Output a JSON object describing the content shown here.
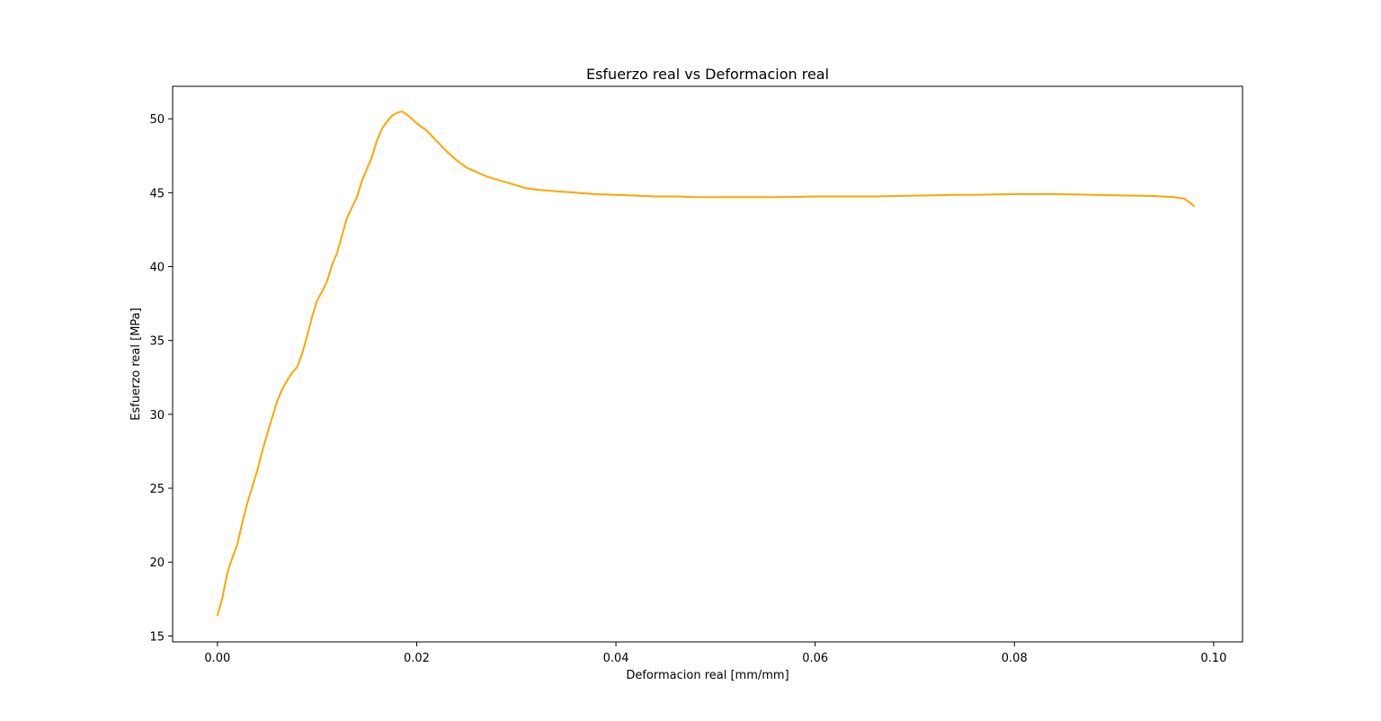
{
  "chart_data": {
    "type": "line",
    "title": "Esfuerzo real vs Deformacion real",
    "xlabel": "Deformacion real [mm/mm]",
    "ylabel": "Esfuerzo real [MPa]",
    "xlim": [
      -0.0045,
      0.1029
    ],
    "ylim": [
      14.6,
      52.2
    ],
    "xticks": [
      0.0,
      0.02,
      0.04,
      0.06,
      0.08,
      0.1
    ],
    "xtick_labels": [
      "0.00",
      "0.02",
      "0.04",
      "0.06",
      "0.08",
      "0.10"
    ],
    "yticks": [
      15,
      20,
      25,
      30,
      35,
      40,
      45,
      50
    ],
    "ytick_labels": [
      "15",
      "20",
      "25",
      "30",
      "35",
      "40",
      "45",
      "50"
    ],
    "grid": false,
    "legend": "none",
    "series": [
      {
        "color": "#ffa500",
        "x": [
          0.0,
          0.0005,
          0.001,
          0.0015,
          0.002,
          0.0025,
          0.003,
          0.0035,
          0.004,
          0.0045,
          0.005,
          0.0055,
          0.006,
          0.0065,
          0.007,
          0.0075,
          0.008,
          0.0085,
          0.009,
          0.0095,
          0.01,
          0.0105,
          0.011,
          0.0115,
          0.012,
          0.0125,
          0.013,
          0.0135,
          0.014,
          0.0145,
          0.015,
          0.0155,
          0.016,
          0.0165,
          0.017,
          0.0175,
          0.018,
          0.0185,
          0.019,
          0.0195,
          0.02,
          0.021,
          0.022,
          0.023,
          0.024,
          0.025,
          0.026,
          0.027,
          0.028,
          0.029,
          0.03,
          0.031,
          0.032,
          0.034,
          0.036,
          0.038,
          0.04,
          0.042,
          0.044,
          0.046,
          0.048,
          0.05,
          0.052,
          0.054,
          0.056,
          0.058,
          0.06,
          0.062,
          0.064,
          0.066,
          0.068,
          0.07,
          0.072,
          0.074,
          0.076,
          0.078,
          0.08,
          0.082,
          0.084,
          0.086,
          0.088,
          0.09,
          0.092,
          0.094,
          0.096,
          0.097,
          0.0975,
          0.098
        ],
        "y": [
          16.4,
          17.6,
          19.3,
          20.3,
          21.2,
          22.7,
          24.0,
          25.1,
          26.2,
          27.5,
          28.7,
          29.8,
          30.9,
          31.7,
          32.3,
          32.8,
          33.2,
          34.1,
          35.3,
          36.6,
          37.7,
          38.3,
          39.0,
          40.1,
          40.9,
          42.1,
          43.3,
          44.0,
          44.7,
          45.8,
          46.6,
          47.4,
          48.5,
          49.3,
          49.8,
          50.2,
          50.4,
          50.5,
          50.3,
          50.0,
          49.7,
          49.2,
          48.5,
          47.8,
          47.2,
          46.7,
          46.4,
          46.1,
          45.9,
          45.7,
          45.5,
          45.3,
          45.2,
          45.1,
          45.0,
          44.9,
          44.85,
          44.8,
          44.75,
          44.75,
          44.7,
          44.7,
          44.7,
          44.7,
          44.7,
          44.72,
          44.75,
          44.75,
          44.75,
          44.75,
          44.78,
          44.8,
          44.82,
          44.85,
          44.85,
          44.88,
          44.9,
          44.9,
          44.9,
          44.88,
          44.85,
          44.82,
          44.8,
          44.78,
          44.7,
          44.6,
          44.4,
          44.1
        ]
      }
    ]
  }
}
